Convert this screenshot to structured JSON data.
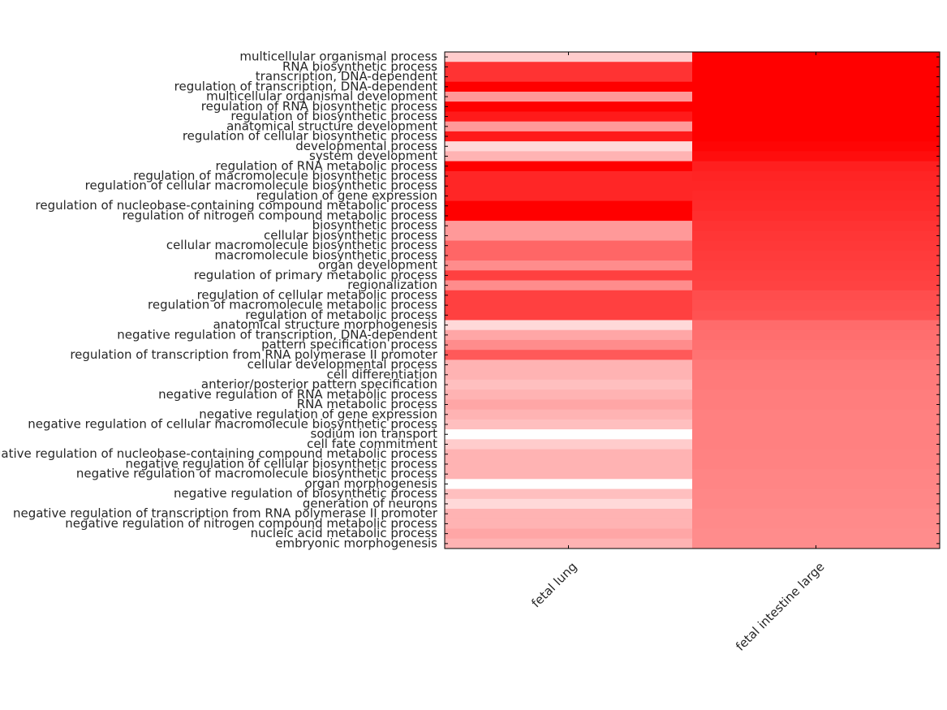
{
  "chart_data": {
    "type": "heatmap",
    "rows": [
      "multicellular organismal process",
      "RNA biosynthetic process",
      "transcription, DNA-dependent",
      "regulation of transcription, DNA-dependent",
      "multicellular organismal development",
      "regulation of RNA biosynthetic process",
      "regulation of biosynthetic process",
      "anatomical structure development",
      "regulation of cellular biosynthetic process",
      "developmental process",
      "system development",
      "regulation of RNA metabolic process",
      "regulation of macromolecule biosynthetic process",
      "regulation of cellular macromolecule biosynthetic process",
      "regulation of gene expression",
      "regulation of nucleobase-containing compound metabolic process",
      "regulation of nitrogen compound metabolic process",
      "biosynthetic process",
      "cellular biosynthetic process",
      "cellular macromolecule biosynthetic process",
      "macromolecule biosynthetic process",
      "organ development",
      "regulation of primary metabolic process",
      "regionalization",
      "regulation of cellular metabolic process",
      "regulation of macromolecule metabolic process",
      "regulation of metabolic process",
      "anatomical structure morphogenesis",
      "negative regulation of transcription, DNA-dependent",
      "pattern specification process",
      "regulation of transcription from RNA polymerase II promoter",
      "cellular developmental process",
      "cell differentiation",
      "anterior/posterior pattern specification",
      "negative regulation of RNA metabolic process",
      "RNA metabolic process",
      "negative regulation of gene expression",
      "negative regulation of cellular macromolecule biosynthetic process",
      "sodium ion transport",
      "cell fate commitment",
      "negative regulation of nucleobase-containing compound metabolic process",
      "negative regulation of cellular biosynthetic process",
      "negative regulation of macromolecule biosynthetic process",
      "organ morphogenesis",
      "negative regulation of biosynthetic process",
      "generation of neurons",
      "negative regulation of transcription from RNA polymerase II promoter",
      "negative regulation of nitrogen compound metabolic process",
      "nucleic acid metabolic process",
      "embryonic morphogenesis"
    ],
    "columns": [
      "fetal lung",
      "fetal intestine large"
    ],
    "low_color": "#ffffff",
    "high_color": "#ff0000",
    "values": [
      [
        0.2,
        1.0
      ],
      [
        0.8,
        1.0
      ],
      [
        0.8,
        1.0
      ],
      [
        1.0,
        1.0
      ],
      [
        0.4,
        1.0
      ],
      [
        1.0,
        1.0
      ],
      [
        0.9,
        1.0
      ],
      [
        0.4,
        1.0
      ],
      [
        0.9,
        1.0
      ],
      [
        0.15,
        0.98
      ],
      [
        0.3,
        0.95
      ],
      [
        1.0,
        0.88
      ],
      [
        0.85,
        0.86
      ],
      [
        0.85,
        0.85
      ],
      [
        0.85,
        0.84
      ],
      [
        1.0,
        0.83
      ],
      [
        1.0,
        0.82
      ],
      [
        0.4,
        0.8
      ],
      [
        0.4,
        0.79
      ],
      [
        0.6,
        0.78
      ],
      [
        0.6,
        0.77
      ],
      [
        0.45,
        0.76
      ],
      [
        0.75,
        0.75
      ],
      [
        0.45,
        0.74
      ],
      [
        0.75,
        0.7
      ],
      [
        0.75,
        0.69
      ],
      [
        0.75,
        0.68
      ],
      [
        0.15,
        0.58
      ],
      [
        0.35,
        0.57
      ],
      [
        0.45,
        0.56
      ],
      [
        0.65,
        0.55
      ],
      [
        0.3,
        0.53
      ],
      [
        0.3,
        0.52
      ],
      [
        0.25,
        0.52
      ],
      [
        0.3,
        0.51
      ],
      [
        0.35,
        0.51
      ],
      [
        0.3,
        0.5
      ],
      [
        0.25,
        0.5
      ],
      [
        0.0,
        0.5
      ],
      [
        0.2,
        0.5
      ],
      [
        0.3,
        0.49
      ],
      [
        0.3,
        0.49
      ],
      [
        0.3,
        0.48
      ],
      [
        0.0,
        0.48
      ],
      [
        0.25,
        0.47
      ],
      [
        0.15,
        0.47
      ],
      [
        0.3,
        0.46
      ],
      [
        0.3,
        0.46
      ],
      [
        0.35,
        0.45
      ],
      [
        0.3,
        0.45
      ]
    ]
  }
}
